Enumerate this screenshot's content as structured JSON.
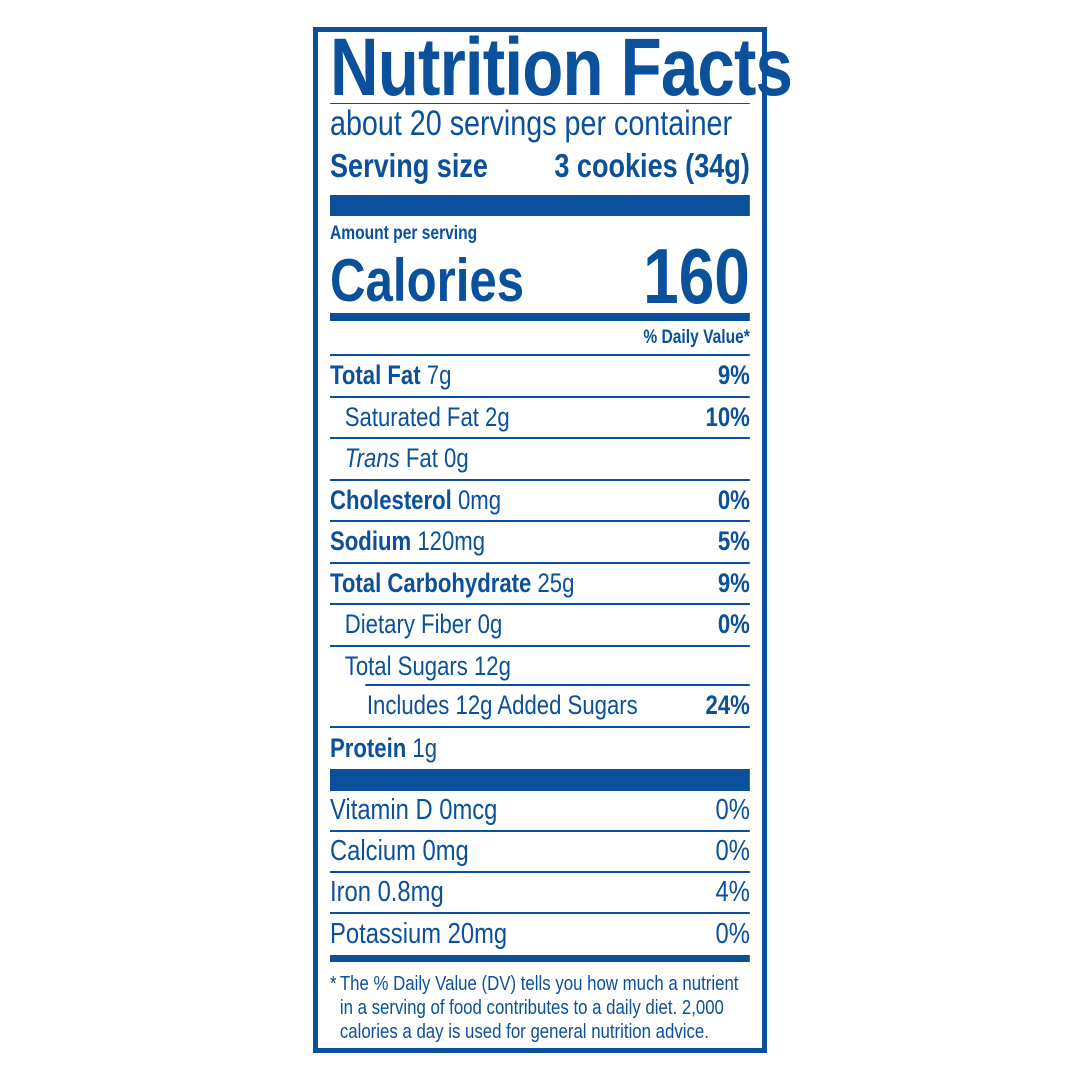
{
  "label": {
    "title": "Nutrition Facts",
    "servings": "about 20 servings per container",
    "serving_size_label": "Serving size",
    "serving_size_value": "3 cookies (34g)",
    "amount_per_serving": "Amount per serving",
    "calories_label": "Calories",
    "calories_value": "160",
    "dv_header": "% Daily Value*",
    "nutrients": [
      {
        "name": "Total Fat",
        "amount": "7g",
        "dv": "9%"
      },
      {
        "name": "Saturated Fat 2g",
        "dv": "10%"
      },
      {
        "name_italic": "Trans",
        "name": "Fat 0g"
      },
      {
        "name": "Cholesterol",
        "amount": "0mg",
        "dv": "0%"
      },
      {
        "name": "Sodium",
        "amount": "120mg",
        "dv": "5%"
      },
      {
        "name": "Total Carbohydrate",
        "amount": "25g",
        "dv": "9%"
      },
      {
        "name": "Dietary Fiber 0g",
        "dv": "0%"
      },
      {
        "name": "Total Sugars 12g"
      },
      {
        "name": "Includes 12g Added Sugars",
        "dv": "24%"
      },
      {
        "name": "Protein",
        "amount": "1g"
      }
    ],
    "vitamins": [
      {
        "name": "Vitamin D 0mcg",
        "dv": "0%"
      },
      {
        "name": "Calcium 0mg",
        "dv": "0%"
      },
      {
        "name": "Iron 0.8mg",
        "dv": "4%"
      },
      {
        "name": "Potassium 20mg",
        "dv": "0%"
      }
    ],
    "footnote_star": "*",
    "footnote": [
      "The % Daily Value (DV) tells you how much a nutrient",
      "in a serving of food contributes to a daily diet. 2,000",
      "calories a day is used for general nutrition advice."
    ]
  },
  "colors": {
    "label_blue": "#0a509a",
    "background": "#ffffff"
  }
}
